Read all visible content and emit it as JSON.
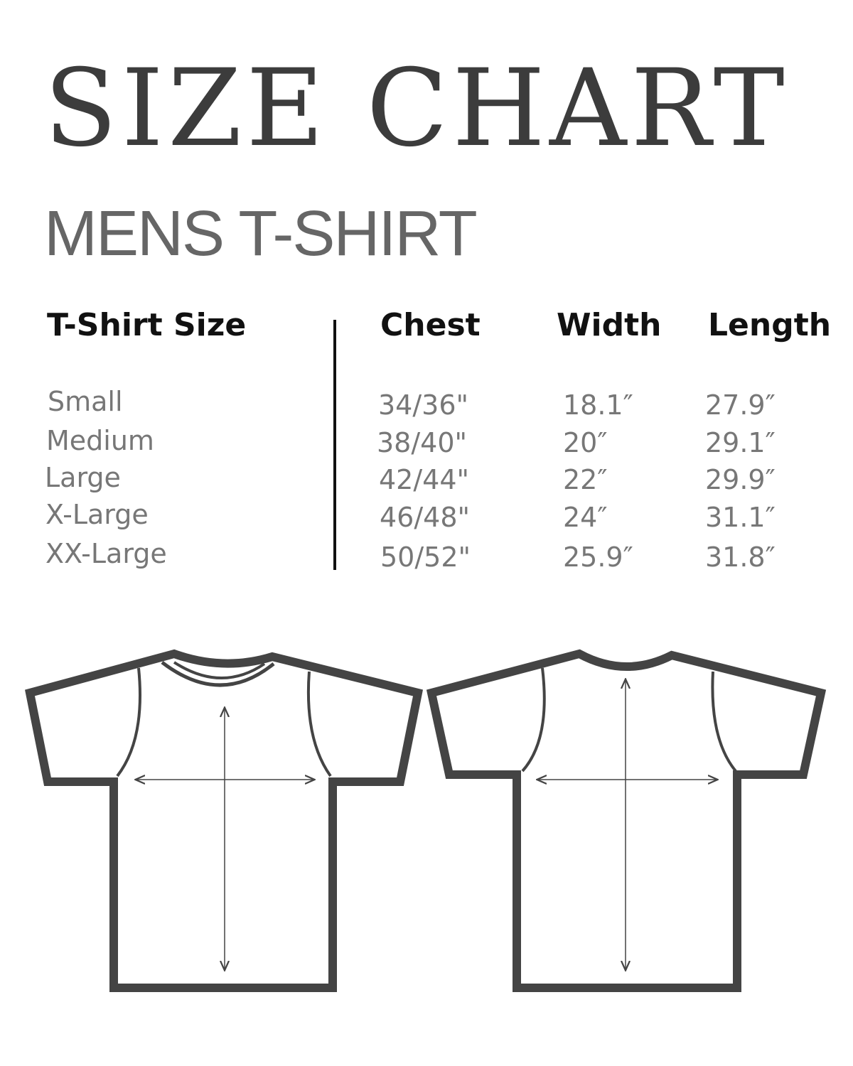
{
  "title": "SIZE CHART",
  "subtitle": "MENS T-SHIRT",
  "headers": {
    "size": "T-Shirt Size",
    "chest": "Chest",
    "width": "Width",
    "length": "Length"
  },
  "rows": [
    {
      "size": "Small",
      "chest": "34/36\"",
      "width": "18.1″",
      "length": "27.9″"
    },
    {
      "size": "Medium",
      "chest": "38/40\"",
      "width": "20″",
      "length": "29.1″"
    },
    {
      "size": "Large",
      "chest": "42/44\"",
      "width": "22″",
      "length": "29.9″"
    },
    {
      "size": "X-Large",
      "chest": "46/48\"",
      "width": "24″",
      "length": "31.1″"
    },
    {
      "size": "XX-Large",
      "chest": "50/52\"",
      "width": "25.9″",
      "length": "31.8″"
    }
  ],
  "colors": {
    "title": "#3c3c3c",
    "subtitle": "#666666",
    "outline": "#444444"
  },
  "icons": [
    "tshirt-front-diagram",
    "tshirt-back-diagram"
  ]
}
